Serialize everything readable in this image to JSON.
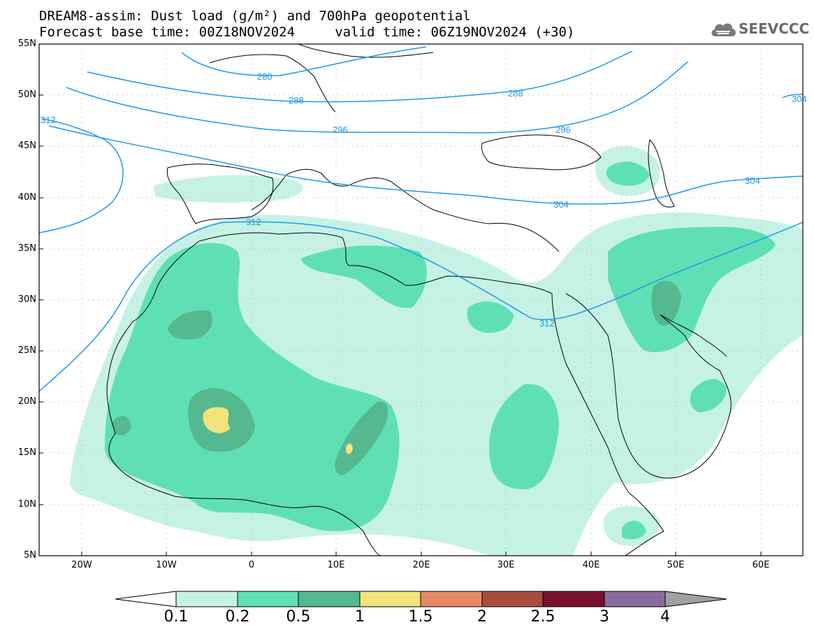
{
  "title": {
    "line1": "DREAM8-assim: Dust load (g/m²) and 700hPa geopotential",
    "line2": "Forecast base time: 00Z18NOV2024     valid time: 06Z19NOV2024 (+30)"
  },
  "logo": {
    "text": "SEEVCCC",
    "icon": "cloud-icon"
  },
  "map": {
    "lon_range": [
      -25,
      65
    ],
    "lat_range": [
      5,
      55
    ],
    "lat_labels": [
      "55N",
      "50N",
      "45N",
      "40N",
      "35N",
      "30N",
      "25N",
      "20N",
      "15N",
      "10N",
      "5N"
    ],
    "lon_labels": [
      "20W",
      "10W",
      "0",
      "10E",
      "20E",
      "30E",
      "40E",
      "50E",
      "60E"
    ],
    "contour_labels": [
      "280",
      "288",
      "288",
      "296",
      "296",
      "304",
      "304",
      "312",
      "312",
      "312",
      "304"
    ]
  },
  "colorbar": {
    "labels": [
      "0.1",
      "0.2",
      "0.5",
      "1",
      "1.5",
      "2",
      "2.5",
      "3",
      "4"
    ],
    "colors": [
      "#ffffff",
      "#c6f2e6",
      "#5fe0b4",
      "#55b88e",
      "#f2e47a",
      "#e58a64",
      "#a84c40",
      "#7a1030",
      "#8c6aa0",
      "#a0a0a0"
    ]
  },
  "colors": {
    "dust_light": "#c6f2e6",
    "dust_medium": "#5fe0b4",
    "dust_dark": "#55b88e",
    "dust_yellow": "#f2e47a",
    "contour": "#1e9be6",
    "coast": "#000000"
  }
}
